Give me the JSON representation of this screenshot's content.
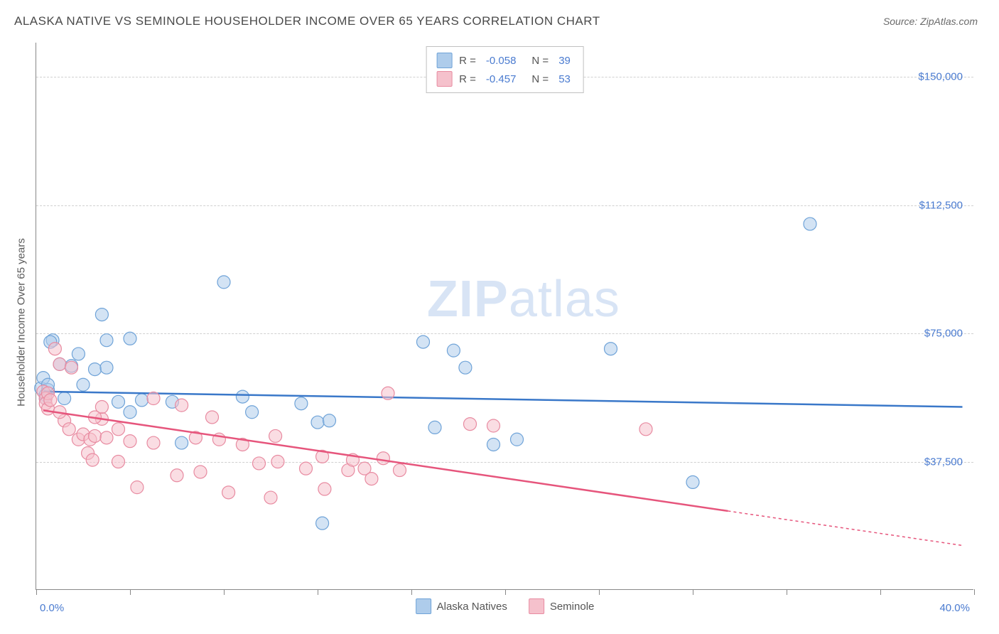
{
  "header": {
    "title": "ALASKA NATIVE VS SEMINOLE HOUSEHOLDER INCOME OVER 65 YEARS CORRELATION CHART",
    "source": "Source: ZipAtlas.com"
  },
  "chart": {
    "type": "scatter",
    "y_axis_label": "Householder Income Over 65 years",
    "xlim": [
      0,
      40
    ],
    "ylim": [
      0,
      160000
    ],
    "x_tick_label_left": "0.0%",
    "x_tick_label_right": "40.0%",
    "x_tick_positions": [
      0,
      4,
      8,
      12,
      16,
      20,
      24,
      28,
      32,
      36,
      40
    ],
    "y_ticks": [
      {
        "value": 37500,
        "label": "$37,500"
      },
      {
        "value": 75000,
        "label": "$75,000"
      },
      {
        "value": 112500,
        "label": "$112,500"
      },
      {
        "value": 150000,
        "label": "$150,000"
      }
    ],
    "grid_color": "#d0d0d0",
    "background_color": "#ffffff",
    "watermark": {
      "zip": "ZIP",
      "atlas": "atlas"
    },
    "series": [
      {
        "name": "Alaska Natives",
        "fill_color": "#aecceb",
        "stroke_color": "#6fa3d8",
        "line_color": "#3a78c9",
        "marker_radius": 9,
        "fill_opacity": 0.55,
        "r_label": "R =",
        "r_value": "-0.058",
        "n_label": "N =",
        "n_value": "39",
        "trend": {
          "x1": 0.3,
          "y1": 58000,
          "x2": 39.5,
          "y2": 53500,
          "solid_end_x": 39.5
        },
        "points": [
          [
            0.2,
            59000
          ],
          [
            0.3,
            62000
          ],
          [
            0.4,
            57000
          ],
          [
            0.4,
            56000
          ],
          [
            0.5,
            58500
          ],
          [
            0.5,
            60000
          ],
          [
            0.7,
            73000
          ],
          [
            0.6,
            72500
          ],
          [
            1.0,
            66000
          ],
          [
            1.5,
            65500
          ],
          [
            1.8,
            69000
          ],
          [
            2.8,
            80500
          ],
          [
            2.5,
            64500
          ],
          [
            3.0,
            73000
          ],
          [
            3.0,
            65000
          ],
          [
            3.5,
            55000
          ],
          [
            4.0,
            73500
          ],
          [
            4.0,
            52000
          ],
          [
            4.5,
            55500
          ],
          [
            5.8,
            55000
          ],
          [
            6.2,
            43000
          ],
          [
            8.0,
            90000
          ],
          [
            8.8,
            56500
          ],
          [
            9.2,
            52000
          ],
          [
            11.3,
            54500
          ],
          [
            12.0,
            49000
          ],
          [
            12.2,
            19500
          ],
          [
            12.5,
            49500
          ],
          [
            16.5,
            72500
          ],
          [
            17.0,
            47500
          ],
          [
            17.8,
            70000
          ],
          [
            18.3,
            65000
          ],
          [
            19.5,
            42500
          ],
          [
            20.5,
            44000
          ],
          [
            24.5,
            70500
          ],
          [
            28.0,
            31500
          ],
          [
            33.0,
            107000
          ],
          [
            1.2,
            56000
          ],
          [
            2.0,
            60000
          ]
        ]
      },
      {
        "name": "Seminole",
        "fill_color": "#f5c1cc",
        "stroke_color": "#e88ba1",
        "line_color": "#e6557c",
        "marker_radius": 9,
        "fill_opacity": 0.55,
        "r_label": "R =",
        "r_value": "-0.457",
        "n_label": "N =",
        "n_value": "53",
        "trend": {
          "x1": 0.3,
          "y1": 52500,
          "x2": 39.5,
          "y2": 13000,
          "solid_end_x": 29.5
        },
        "points": [
          [
            0.3,
            58000
          ],
          [
            0.4,
            56000
          ],
          [
            0.4,
            54500
          ],
          [
            0.5,
            57500
          ],
          [
            0.5,
            53000
          ],
          [
            0.6,
            55500
          ],
          [
            0.8,
            70500
          ],
          [
            1.0,
            66000
          ],
          [
            1.2,
            49500
          ],
          [
            1.5,
            65000
          ],
          [
            1.4,
            47000
          ],
          [
            1.8,
            44000
          ],
          [
            2.0,
            45500
          ],
          [
            2.2,
            40000
          ],
          [
            2.3,
            44000
          ],
          [
            2.4,
            38000
          ],
          [
            2.5,
            45000
          ],
          [
            2.8,
            50000
          ],
          [
            2.8,
            53500
          ],
          [
            3.0,
            44500
          ],
          [
            3.5,
            47000
          ],
          [
            3.5,
            37500
          ],
          [
            4.0,
            43500
          ],
          [
            4.3,
            30000
          ],
          [
            5.0,
            56000
          ],
          [
            5.0,
            43000
          ],
          [
            6.0,
            33500
          ],
          [
            6.2,
            54000
          ],
          [
            6.8,
            44500
          ],
          [
            7.0,
            34500
          ],
          [
            7.5,
            50500
          ],
          [
            7.8,
            44000
          ],
          [
            8.2,
            28500
          ],
          [
            8.8,
            42500
          ],
          [
            9.5,
            37000
          ],
          [
            10.0,
            27000
          ],
          [
            10.3,
            37500
          ],
          [
            10.2,
            45000
          ],
          [
            11.5,
            35500
          ],
          [
            12.2,
            39000
          ],
          [
            12.3,
            29500
          ],
          [
            13.3,
            35000
          ],
          [
            13.5,
            38000
          ],
          [
            14.0,
            35500
          ],
          [
            14.3,
            32500
          ],
          [
            15.0,
            57500
          ],
          [
            14.8,
            38500
          ],
          [
            15.5,
            35000
          ],
          [
            18.5,
            48500
          ],
          [
            19.5,
            48000
          ],
          [
            26.0,
            47000
          ],
          [
            1.0,
            52000
          ],
          [
            2.5,
            50500
          ]
        ]
      }
    ]
  }
}
